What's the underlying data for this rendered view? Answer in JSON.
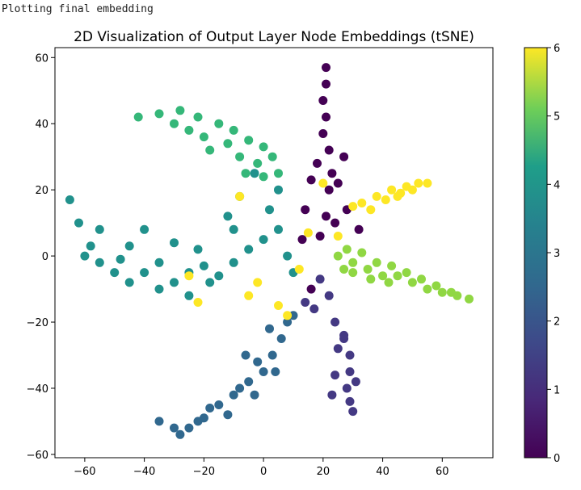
{
  "output": {
    "log_text": "Plotting final embedding"
  },
  "chart_data": {
    "type": "scatter",
    "title": "2D Visualization of Output Layer Node Embeddings (tSNE)",
    "xlabel": "",
    "ylabel": "",
    "xlim": [
      -70,
      77
    ],
    "ylim": [
      -61,
      63
    ],
    "xticks": [
      -60,
      -40,
      -20,
      0,
      20,
      40,
      60
    ],
    "yticks": [
      -60,
      -40,
      -20,
      0,
      20,
      40,
      60
    ],
    "grid": false,
    "colormap": "viridis",
    "colorbar": {
      "min": 0,
      "max": 6,
      "ticks": [
        0,
        1,
        2,
        3,
        4,
        5,
        6
      ]
    },
    "clusters": [
      {
        "class": 0,
        "color": "#440154",
        "approx_points": [
          [
            21,
            57
          ],
          [
            21,
            52
          ],
          [
            20,
            47
          ],
          [
            21,
            42
          ],
          [
            20,
            37
          ],
          [
            22,
            32
          ],
          [
            18,
            28
          ],
          [
            23,
            25
          ],
          [
            27,
            30
          ],
          [
            16,
            23
          ],
          [
            22,
            20
          ],
          [
            25,
            22
          ],
          [
            21,
            12
          ],
          [
            24,
            10
          ],
          [
            14,
            14
          ],
          [
            19,
            6
          ],
          [
            28,
            14
          ],
          [
            32,
            8
          ],
          [
            16,
            -10
          ],
          [
            13,
            5
          ]
        ]
      },
      {
        "class": 1,
        "color": "#443983",
        "approx_points": [
          [
            22,
            -12
          ],
          [
            24,
            -20
          ],
          [
            27,
            -25
          ],
          [
            29,
            -30
          ],
          [
            29,
            -35
          ],
          [
            28,
            -40
          ],
          [
            29,
            -44
          ],
          [
            30,
            -47
          ],
          [
            27,
            -24
          ],
          [
            14,
            -14
          ],
          [
            19,
            -7
          ],
          [
            17,
            -16
          ],
          [
            25,
            -28
          ],
          [
            31,
            -38
          ],
          [
            24,
            -36
          ],
          [
            23,
            -42
          ]
        ]
      },
      {
        "class": 2,
        "color": "#31688e",
        "approx_points": [
          [
            -35,
            -50
          ],
          [
            -30,
            -52
          ],
          [
            -25,
            -52
          ],
          [
            -20,
            -49
          ],
          [
            -15,
            -45
          ],
          [
            -10,
            -42
          ],
          [
            -5,
            -38
          ],
          [
            0,
            -35
          ],
          [
            3,
            -30
          ],
          [
            6,
            -25
          ],
          [
            8,
            -20
          ],
          [
            -12,
            -48
          ],
          [
            -8,
            -40
          ],
          [
            -2,
            -32
          ],
          [
            2,
            -22
          ],
          [
            -18,
            -46
          ],
          [
            -22,
            -50
          ],
          [
            -28,
            -54
          ],
          [
            -3,
            -42
          ],
          [
            4,
            -35
          ],
          [
            10,
            -18
          ],
          [
            -6,
            -30
          ]
        ]
      },
      {
        "class": 3,
        "color": "#21918c",
        "approx_points": [
          [
            -65,
            17
          ],
          [
            -62,
            10
          ],
          [
            -58,
            3
          ],
          [
            -55,
            -2
          ],
          [
            -50,
            -5
          ],
          [
            -45,
            -8
          ],
          [
            -40,
            -5
          ],
          [
            -35,
            -10
          ],
          [
            -30,
            -8
          ],
          [
            -25,
            -5
          ],
          [
            -20,
            -3
          ],
          [
            -15,
            -6
          ],
          [
            -10,
            -2
          ],
          [
            -5,
            2
          ],
          [
            0,
            5
          ],
          [
            5,
            8
          ],
          [
            -8,
            18
          ],
          [
            -12,
            12
          ],
          [
            -3,
            25
          ],
          [
            5,
            20
          ],
          [
            -45,
            3
          ],
          [
            -40,
            8
          ],
          [
            -30,
            4
          ],
          [
            -22,
            2
          ],
          [
            -60,
            0
          ],
          [
            -55,
            8
          ],
          [
            -48,
            -1
          ],
          [
            -35,
            -2
          ],
          [
            -25,
            -12
          ],
          [
            -18,
            -8
          ],
          [
            -10,
            8
          ],
          [
            2,
            14
          ],
          [
            8,
            0
          ],
          [
            10,
            -5
          ]
        ]
      },
      {
        "class": 4,
        "color": "#35b779",
        "approx_points": [
          [
            -42,
            42
          ],
          [
            -35,
            43
          ],
          [
            -28,
            44
          ],
          [
            -22,
            42
          ],
          [
            -15,
            40
          ],
          [
            -10,
            38
          ],
          [
            -5,
            35
          ],
          [
            0,
            33
          ],
          [
            3,
            30
          ],
          [
            5,
            25
          ],
          [
            -20,
            36
          ],
          [
            -12,
            34
          ],
          [
            -8,
            30
          ],
          [
            -2,
            28
          ],
          [
            -30,
            40
          ],
          [
            -25,
            38
          ],
          [
            -18,
            32
          ],
          [
            -6,
            25
          ],
          [
            0,
            24
          ]
        ]
      },
      {
        "class": 5,
        "color": "#90d743",
        "approx_points": [
          [
            25,
            0
          ],
          [
            30,
            -2
          ],
          [
            35,
            -4
          ],
          [
            40,
            -6
          ],
          [
            45,
            -6
          ],
          [
            50,
            -8
          ],
          [
            55,
            -10
          ],
          [
            60,
            -11
          ],
          [
            65,
            -12
          ],
          [
            69,
            -13
          ],
          [
            28,
            2
          ],
          [
            33,
            1
          ],
          [
            38,
            -2
          ],
          [
            43,
            -3
          ],
          [
            48,
            -5
          ],
          [
            53,
            -7
          ],
          [
            58,
            -9
          ],
          [
            63,
            -11
          ],
          [
            30,
            -5
          ],
          [
            36,
            -7
          ],
          [
            42,
            -8
          ],
          [
            27,
            -4
          ]
        ]
      },
      {
        "class": 6,
        "color": "#fde725",
        "approx_points": [
          [
            33,
            16
          ],
          [
            38,
            18
          ],
          [
            43,
            20
          ],
          [
            48,
            21
          ],
          [
            52,
            22
          ],
          [
            55,
            22
          ],
          [
            36,
            14
          ],
          [
            41,
            17
          ],
          [
            46,
            19
          ],
          [
            50,
            20
          ],
          [
            30,
            15
          ],
          [
            45,
            18
          ],
          [
            25,
            6
          ],
          [
            20,
            22
          ],
          [
            -22,
            -14
          ],
          [
            -25,
            -6
          ],
          [
            -2,
            -8
          ],
          [
            5,
            -15
          ],
          [
            12,
            -4
          ],
          [
            15,
            7
          ],
          [
            -5,
            -12
          ],
          [
            8,
            -18
          ],
          [
            -8,
            18
          ]
        ]
      }
    ]
  }
}
